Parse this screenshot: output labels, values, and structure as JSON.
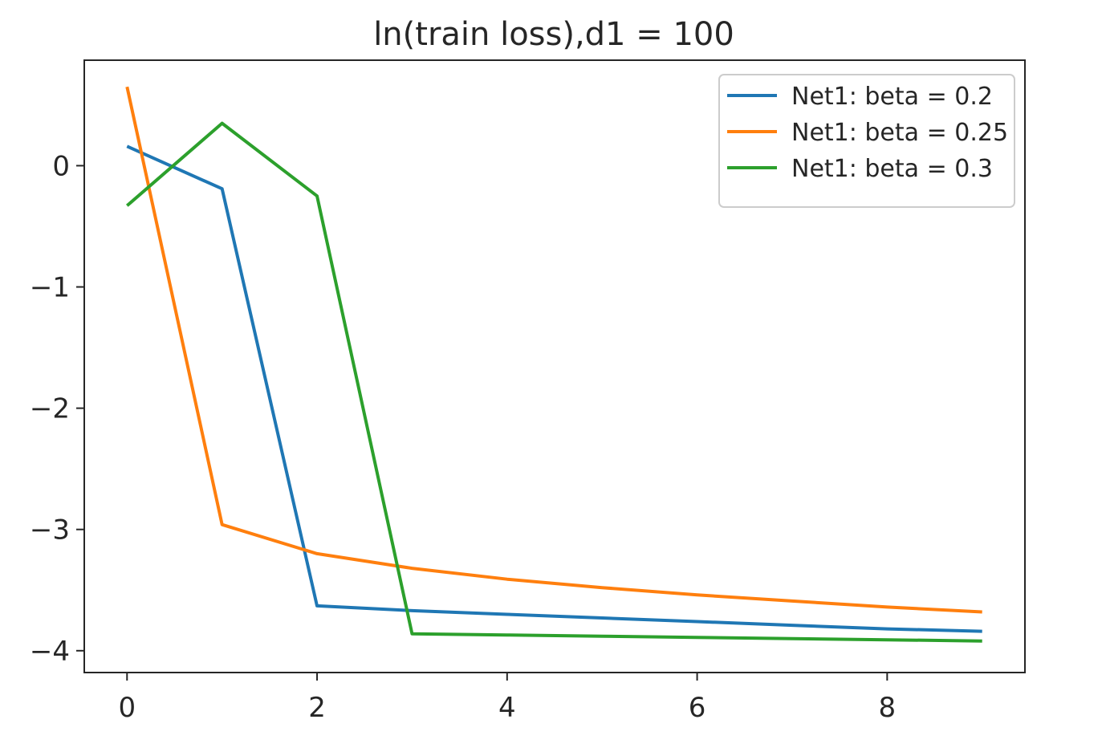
{
  "chart_data": {
    "type": "line",
    "title": "ln(train loss),d1 = 100",
    "xlabel": "",
    "ylabel": "",
    "x": [
      0,
      1,
      2,
      3,
      4,
      5,
      6,
      7,
      8,
      9
    ],
    "xlim": [
      -0.45,
      9.45
    ],
    "ylim": [
      -4.18,
      0.87
    ],
    "xticks": [
      0,
      2,
      4,
      6,
      8
    ],
    "xtick_labels": [
      "0",
      "2",
      "4",
      "6",
      "8"
    ],
    "yticks": [
      0,
      -1,
      -2,
      -3,
      -4
    ],
    "ytick_labels": [
      "0",
      "−1",
      "−2",
      "−3",
      "−4"
    ],
    "grid": false,
    "legend_position": "top-right",
    "series": [
      {
        "name": "Net1: beta = 0.2",
        "color": "#1f77b4",
        "values": [
          0.16,
          -0.19,
          -3.63,
          -3.67,
          -3.7,
          -3.73,
          -3.76,
          -3.79,
          -3.82,
          -3.84
        ]
      },
      {
        "name": "Net1: beta = 0.25",
        "color": "#ff7f0e",
        "values": [
          0.65,
          -2.96,
          -3.2,
          -3.32,
          -3.41,
          -3.48,
          -3.54,
          -3.59,
          -3.64,
          -3.68
        ]
      },
      {
        "name": "Net1: beta = 0.3",
        "color": "#2ca02c",
        "values": [
          -0.33,
          0.35,
          -0.25,
          -3.86,
          -3.87,
          -3.88,
          -3.89,
          -3.9,
          -3.91,
          -3.92
        ]
      }
    ]
  }
}
